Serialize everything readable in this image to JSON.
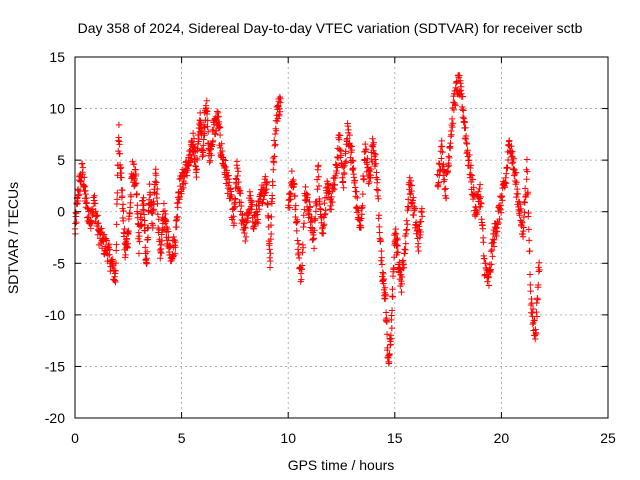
{
  "chart_data": {
    "type": "scatter",
    "title": "Day 358 of 2024, Sidereal Day-to-day VTEC variation (SDTVAR) for receiver sctb",
    "xlabel": "GPS time / hours",
    "ylabel": "SDTVAR / TECUs",
    "xlim": [
      0,
      25
    ],
    "ylim": [
      -20,
      15
    ],
    "x_ticks": [
      0,
      5,
      10,
      15,
      20,
      25
    ],
    "y_ticks": [
      -20,
      -15,
      -10,
      -5,
      0,
      5,
      10,
      15
    ],
    "x_tick_labels": [
      "0",
      "5",
      "10",
      "15",
      "20",
      "25"
    ],
    "y_tick_labels": [
      "-20",
      "-15",
      "-10",
      "-5",
      "0",
      "5",
      "10",
      "15"
    ],
    "grid": true,
    "marker": "+",
    "color": "#ff0000",
    "series": [
      {
        "name": "SDTVAR",
        "trace": [
          [
            0.0,
            -2
          ],
          [
            0.15,
            2
          ],
          [
            0.35,
            4
          ],
          [
            0.5,
            1
          ],
          [
            0.7,
            -1
          ],
          [
            0.9,
            1
          ],
          [
            1.1,
            -2
          ],
          [
            1.3,
            -3
          ],
          [
            1.5,
            -3.5
          ],
          [
            1.7,
            -5
          ],
          [
            1.9,
            -6.5
          ],
          [
            2.05,
            8
          ],
          [
            2.2,
            2
          ],
          [
            2.35,
            -4
          ],
          [
            2.5,
            -2
          ],
          [
            2.7,
            4
          ],
          [
            2.85,
            3
          ],
          [
            3.0,
            -3
          ],
          [
            3.2,
            1
          ],
          [
            3.35,
            -5
          ],
          [
            3.5,
            2
          ],
          [
            3.65,
            -1
          ],
          [
            3.8,
            4
          ],
          [
            4.0,
            -5
          ],
          [
            4.15,
            0
          ],
          [
            4.3,
            -2
          ],
          [
            4.5,
            -4
          ],
          [
            4.7,
            -3
          ],
          [
            4.85,
            2
          ],
          [
            5.05,
            3
          ],
          [
            5.2,
            4
          ],
          [
            5.4,
            5
          ],
          [
            5.55,
            7
          ],
          [
            5.7,
            4
          ],
          [
            5.85,
            9
          ],
          [
            6.0,
            6
          ],
          [
            6.15,
            11
          ],
          [
            6.3,
            5
          ],
          [
            6.5,
            8
          ],
          [
            6.7,
            9
          ],
          [
            6.85,
            6
          ],
          [
            7.05,
            4
          ],
          [
            7.25,
            2
          ],
          [
            7.45,
            -1
          ],
          [
            7.6,
            4
          ],
          [
            7.8,
            0
          ],
          [
            8.0,
            -2
          ],
          [
            8.2,
            1
          ],
          [
            8.4,
            -1
          ],
          [
            8.6,
            0
          ],
          [
            8.8,
            2
          ],
          [
            9.0,
            3
          ],
          [
            9.15,
            -5
          ],
          [
            9.3,
            5
          ],
          [
            9.5,
            10
          ],
          [
            9.65,
            10.5
          ]
        ],
        "trace2": [
          [
            10.0,
            0
          ],
          [
            10.2,
            4
          ],
          [
            10.4,
            -1
          ],
          [
            10.6,
            -7
          ],
          [
            10.8,
            2
          ],
          [
            11.0,
            0
          ],
          [
            11.2,
            -3
          ],
          [
            11.4,
            4
          ],
          [
            11.6,
            -2
          ],
          [
            11.8,
            2
          ],
          [
            12.0,
            1
          ],
          [
            12.2,
            3
          ],
          [
            12.4,
            7
          ],
          [
            12.6,
            3
          ],
          [
            12.8,
            8
          ],
          [
            13.0,
            5
          ],
          [
            13.2,
            1
          ],
          [
            13.4,
            -2
          ],
          [
            13.6,
            6
          ],
          [
            13.8,
            3
          ],
          [
            14.0,
            7
          ],
          [
            14.2,
            2
          ],
          [
            14.4,
            -6
          ],
          [
            14.55,
            -8
          ],
          [
            14.7,
            -15
          ],
          [
            14.85,
            -11
          ],
          [
            15.0,
            -2
          ],
          [
            15.15,
            -4
          ],
          [
            15.3,
            -7
          ],
          [
            15.5,
            -3
          ],
          [
            15.7,
            3
          ],
          [
            15.9,
            0
          ],
          [
            16.1,
            -3
          ],
          [
            16.3,
            0
          ]
        ],
        "trace3": [
          [
            17.0,
            3
          ],
          [
            17.2,
            6
          ],
          [
            17.4,
            2
          ],
          [
            17.6,
            7
          ],
          [
            17.8,
            11
          ],
          [
            18.0,
            12.5
          ],
          [
            18.2,
            10
          ],
          [
            18.4,
            6
          ],
          [
            18.6,
            3
          ],
          [
            18.8,
            0
          ],
          [
            19.0,
            2
          ],
          [
            19.2,
            -5
          ],
          [
            19.4,
            -7
          ],
          [
            19.6,
            -3
          ],
          [
            19.8,
            -1
          ],
          [
            20.0,
            1
          ],
          [
            20.2,
            3
          ],
          [
            20.4,
            7
          ],
          [
            20.6,
            4
          ],
          [
            20.8,
            1
          ],
          [
            21.0,
            -2
          ],
          [
            21.2,
            4
          ],
          [
            21.4,
            -9
          ],
          [
            21.6,
            -12
          ],
          [
            21.8,
            -4
          ]
        ],
        "points": []
      }
    ]
  }
}
